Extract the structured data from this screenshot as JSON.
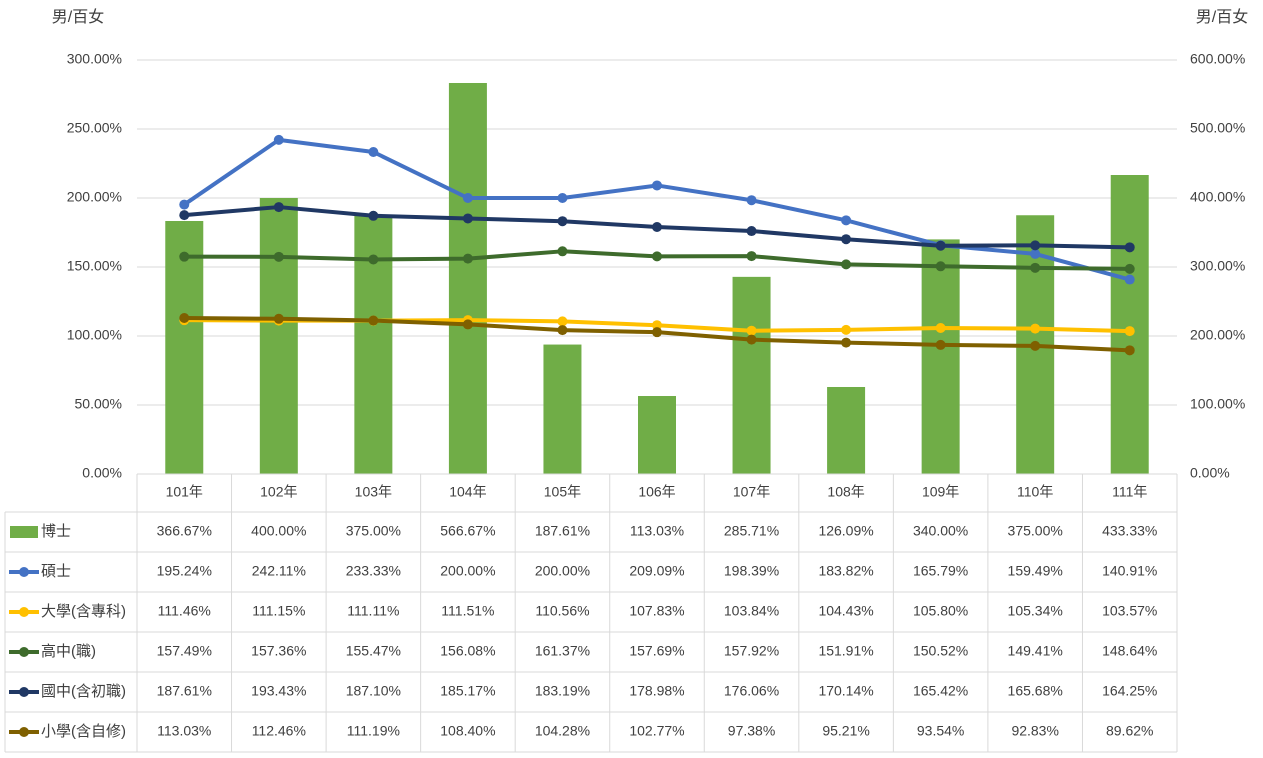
{
  "chart_data": {
    "type": "combo",
    "y_label": "男/百女",
    "y2_label": "男/百女",
    "categories": [
      "101年",
      "102年",
      "103年",
      "104年",
      "105年",
      "106年",
      "107年",
      "108年",
      "109年",
      "110年",
      "111年"
    ],
    "ylim": [
      0,
      300
    ],
    "yticks": [
      {
        "value": 0,
        "label": "0.00%"
      },
      {
        "value": 50,
        "label": "50.00%"
      },
      {
        "value": 100,
        "label": "100.00%"
      },
      {
        "value": 150,
        "label": "150.00%"
      },
      {
        "value": 200,
        "label": "200.00%"
      },
      {
        "value": 250,
        "label": "250.00%"
      },
      {
        "value": 300,
        "label": "300.00%"
      }
    ],
    "y2lim": [
      0,
      600
    ],
    "y2ticks": [
      {
        "value": 0,
        "label": "0.00%"
      },
      {
        "value": 100,
        "label": "100.00%"
      },
      {
        "value": 200,
        "label": "200.00%"
      },
      {
        "value": 300,
        "label": "300.00%"
      },
      {
        "value": 400,
        "label": "400.00%"
      },
      {
        "value": 500,
        "label": "500.00%"
      },
      {
        "value": 600,
        "label": "600.00%"
      }
    ],
    "grid": true,
    "data_table": true,
    "series": [
      {
        "name": "博士",
        "type": "bar",
        "axis": "y2",
        "color": "#70ad47",
        "values": [
          366.67,
          400.0,
          375.0,
          566.67,
          187.61,
          113.03,
          285.71,
          126.09,
          340.0,
          375.0,
          433.33
        ],
        "value_labels": [
          "366.67%",
          "400.00%",
          "375.00%",
          "566.67%",
          "187.61%",
          "113.03%",
          "285.71%",
          "126.09%",
          "340.00%",
          "375.00%",
          "433.33%"
        ]
      },
      {
        "name": "碩士",
        "type": "line",
        "color": "#4472c4",
        "values": [
          195.24,
          242.11,
          233.33,
          200.0,
          200.0,
          209.09,
          198.39,
          183.82,
          165.79,
          159.49,
          140.91
        ],
        "value_labels": [
          "195.24%",
          "242.11%",
          "233.33%",
          "200.00%",
          "200.00%",
          "209.09%",
          "198.39%",
          "183.82%",
          "165.79%",
          "159.49%",
          "140.91%"
        ]
      },
      {
        "name": "大學(含專科)",
        "type": "line",
        "color": "#ffc000",
        "values": [
          111.46,
          111.15,
          111.11,
          111.51,
          110.56,
          107.83,
          103.84,
          104.43,
          105.8,
          105.34,
          103.57
        ],
        "value_labels": [
          "111.46%",
          "111.15%",
          "111.11%",
          "111.51%",
          "110.56%",
          "107.83%",
          "103.84%",
          "104.43%",
          "105.80%",
          "105.34%",
          "103.57%"
        ]
      },
      {
        "name": "高中(職)",
        "type": "line",
        "color": "#3e6b2c",
        "values": [
          157.49,
          157.36,
          155.47,
          156.08,
          161.37,
          157.69,
          157.92,
          151.91,
          150.52,
          149.41,
          148.64
        ],
        "value_labels": [
          "157.49%",
          "157.36%",
          "155.47%",
          "156.08%",
          "161.37%",
          "157.69%",
          "157.92%",
          "151.91%",
          "150.52%",
          "149.41%",
          "148.64%"
        ]
      },
      {
        "name": "國中(含初職)",
        "type": "line",
        "color": "#203864",
        "values": [
          187.61,
          193.43,
          187.1,
          185.17,
          183.19,
          178.98,
          176.06,
          170.14,
          165.42,
          165.68,
          164.25
        ],
        "value_labels": [
          "187.61%",
          "193.43%",
          "187.10%",
          "185.17%",
          "183.19%",
          "178.98%",
          "176.06%",
          "170.14%",
          "165.42%",
          "165.68%",
          "164.25%"
        ]
      },
      {
        "name": "小學(含自修)",
        "type": "line",
        "color": "#7f6000",
        "values": [
          113.03,
          112.46,
          111.19,
          108.4,
          104.28,
          102.77,
          97.38,
          95.21,
          93.54,
          92.83,
          89.62
        ],
        "value_labels": [
          "113.03%",
          "112.46%",
          "111.19%",
          "108.40%",
          "104.28%",
          "102.77%",
          "97.38%",
          "95.21%",
          "93.54%",
          "92.83%",
          "89.62%"
        ]
      }
    ]
  }
}
